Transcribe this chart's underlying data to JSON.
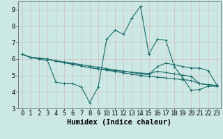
{
  "xlabel": "Humidex (Indice chaleur)",
  "x_values": [
    0,
    1,
    2,
    3,
    4,
    5,
    6,
    7,
    8,
    9,
    10,
    11,
    12,
    13,
    14,
    15,
    16,
    17,
    18,
    19,
    20,
    21,
    22,
    23
  ],
  "line1": [
    6.3,
    6.1,
    6.0,
    5.9,
    4.6,
    4.5,
    4.5,
    4.3,
    3.35,
    4.3,
    7.2,
    7.75,
    7.5,
    8.5,
    9.2,
    6.3,
    7.2,
    7.15,
    5.55,
    4.85,
    4.1,
    4.15,
    4.35,
    4.35
  ],
  "line2": [
    6.3,
    6.1,
    6.05,
    6.0,
    5.9,
    5.82,
    5.74,
    5.66,
    5.58,
    5.5,
    5.42,
    5.34,
    5.26,
    5.18,
    5.1,
    5.05,
    5.55,
    5.75,
    5.65,
    5.55,
    5.45,
    5.45,
    5.3,
    4.45
  ],
  "line3": [
    6.3,
    6.1,
    6.05,
    6.0,
    5.88,
    5.78,
    5.68,
    5.58,
    5.48,
    5.4,
    5.35,
    5.3,
    5.25,
    5.2,
    5.15,
    5.12,
    5.25,
    5.18,
    5.1,
    5.02,
    4.95,
    4.5,
    4.45,
    4.4
  ],
  "line4": [
    6.3,
    6.1,
    6.05,
    6.0,
    5.88,
    5.78,
    5.68,
    5.58,
    5.48,
    5.4,
    5.32,
    5.24,
    5.16,
    5.08,
    5.0,
    4.95,
    4.9,
    4.85,
    4.8,
    4.75,
    4.7,
    4.5,
    4.45,
    4.4
  ],
  "line_color": "#1a6b6b",
  "bg_color": "#cce8e4",
  "grid_color": "#b0ceca",
  "grid_major_color": "#c8e0dc",
  "ylim": [
    3,
    9.5
  ],
  "xlim": [
    -0.5,
    23.5
  ],
  "yticks": [
    3,
    4,
    5,
    6,
    7,
    8,
    9
  ],
  "xticks": [
    0,
    1,
    2,
    3,
    4,
    5,
    6,
    7,
    8,
    9,
    10,
    11,
    12,
    13,
    14,
    15,
    16,
    17,
    18,
    19,
    20,
    21,
    22,
    23
  ],
  "xlabel_fontsize": 7.5,
  "tick_fontsize": 6.5,
  "lw": 0.8,
  "marker_size": 2.5
}
